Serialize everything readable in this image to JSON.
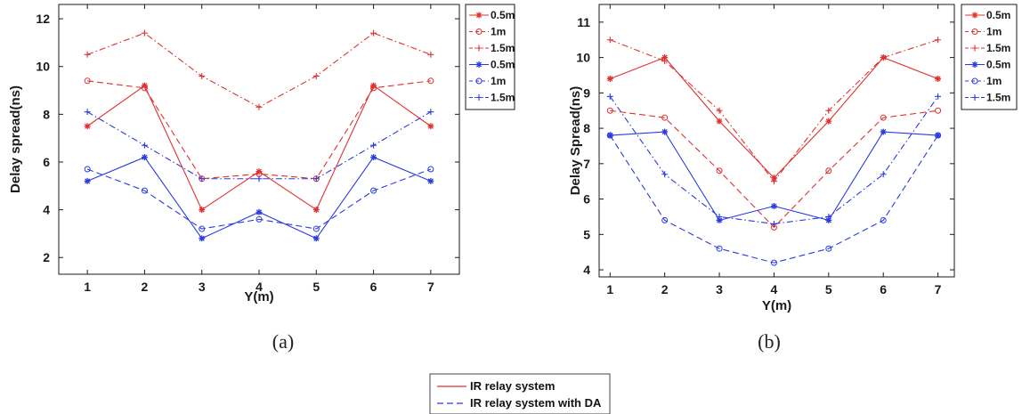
{
  "colors": {
    "red": "#e03030",
    "blue": "#2a3be0",
    "axis": "#1a1a1a"
  },
  "chart_data": [
    {
      "type": "line",
      "caption": "(a)",
      "xlabel": "Y(m)",
      "ylabel": "Delay spread(ns)",
      "x": [
        1,
        2,
        3,
        4,
        5,
        6,
        7
      ],
      "xlim": [
        0.5,
        7.5
      ],
      "ylim": [
        1.3,
        12.6
      ],
      "xticks": [
        1,
        2,
        3,
        4,
        5,
        6,
        7
      ],
      "yticks": [
        2,
        4,
        6,
        8,
        10,
        12
      ],
      "legend_position": "top-right-outside",
      "series": [
        {
          "name": "0.5m",
          "color": "red",
          "dash": "solid",
          "marker": "star",
          "values": [
            7.5,
            9.2,
            4.0,
            5.6,
            4.0,
            9.2,
            7.5
          ]
        },
        {
          "name": "1m",
          "color": "red",
          "dash": "dashed",
          "marker": "circle",
          "values": [
            9.4,
            9.1,
            5.3,
            5.5,
            5.3,
            9.1,
            9.4
          ]
        },
        {
          "name": "1.5m",
          "color": "red",
          "dash": "dashdot",
          "marker": "plus",
          "values": [
            10.5,
            11.4,
            9.6,
            8.3,
            9.6,
            11.4,
            10.5
          ]
        },
        {
          "name": "0.5m",
          "color": "blue",
          "dash": "solid",
          "marker": "star",
          "values": [
            5.2,
            6.2,
            2.8,
            3.9,
            2.8,
            6.2,
            5.2
          ]
        },
        {
          "name": "1m",
          "color": "blue",
          "dash": "dashed",
          "marker": "circle",
          "values": [
            5.7,
            4.8,
            3.2,
            3.6,
            3.2,
            4.8,
            5.7
          ]
        },
        {
          "name": "1.5m",
          "color": "blue",
          "dash": "dashdot",
          "marker": "plus",
          "values": [
            8.1,
            6.7,
            5.3,
            5.3,
            5.3,
            6.7,
            8.1
          ]
        }
      ]
    },
    {
      "type": "line",
      "caption": "(b)",
      "xlabel": "Y(m)",
      "ylabel": "Delay Spread(ns)",
      "x": [
        1,
        2,
        3,
        4,
        5,
        6,
        7
      ],
      "xlim": [
        0.8,
        7.3
      ],
      "ylim": [
        3.8,
        11.5
      ],
      "xticks": [
        1,
        2,
        3,
        4,
        5,
        6,
        7
      ],
      "yticks": [
        4,
        5,
        6,
        7,
        8,
        9,
        10,
        11
      ],
      "legend_position": "top-right-outside",
      "series": [
        {
          "name": "0.5m",
          "color": "red",
          "dash": "solid",
          "marker": "star",
          "values": [
            9.4,
            10.0,
            8.2,
            6.6,
            8.2,
            10.0,
            9.4
          ]
        },
        {
          "name": "1m",
          "color": "red",
          "dash": "dashed",
          "marker": "circle",
          "values": [
            8.5,
            8.3,
            6.8,
            5.2,
            6.8,
            8.3,
            8.5
          ]
        },
        {
          "name": "1.5m",
          "color": "red",
          "dash": "dashdot",
          "marker": "plus",
          "values": [
            10.5,
            9.9,
            8.5,
            6.5,
            8.5,
            10.0,
            10.5
          ]
        },
        {
          "name": "0.5m",
          "color": "blue",
          "dash": "solid",
          "marker": "star",
          "values": [
            7.8,
            7.9,
            5.4,
            5.8,
            5.4,
            7.9,
            7.8
          ]
        },
        {
          "name": "1m",
          "color": "blue",
          "dash": "dashed",
          "marker": "circle",
          "values": [
            7.8,
            5.4,
            4.6,
            4.2,
            4.6,
            5.4,
            7.8
          ]
        },
        {
          "name": "1.5m",
          "color": "blue",
          "dash": "dashdot",
          "marker": "plus",
          "values": [
            8.9,
            6.7,
            5.5,
            5.3,
            5.5,
            6.7,
            8.9
          ]
        }
      ]
    }
  ],
  "bottom_legend": [
    {
      "label": "IR relay system",
      "color": "red",
      "dash": "solid"
    },
    {
      "label": "IR relay system with DA",
      "color": "blue",
      "dash": "dashed"
    }
  ]
}
